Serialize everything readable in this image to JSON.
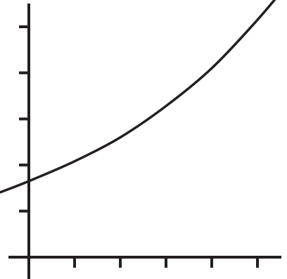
{
  "chart_data": {
    "type": "line",
    "title": "",
    "xlabel": "",
    "ylabel": "",
    "xlim": [
      -0.62,
      5.9
    ],
    "ylim": [
      0,
      5.3
    ],
    "x_ticks": [
      1,
      2,
      3,
      4,
      5
    ],
    "y_ticks": [
      1,
      2,
      3,
      4,
      5
    ],
    "grid": false,
    "legend": "none",
    "series": [
      {
        "color": "#231f20",
        "x": [
          -0.62,
          0,
          1,
          2,
          3,
          4,
          5,
          5.82
        ],
        "y": [
          1.41,
          1.65,
          2.08,
          2.6,
          3.28,
          4.1,
          5.15,
          6.12
        ]
      }
    ]
  }
}
